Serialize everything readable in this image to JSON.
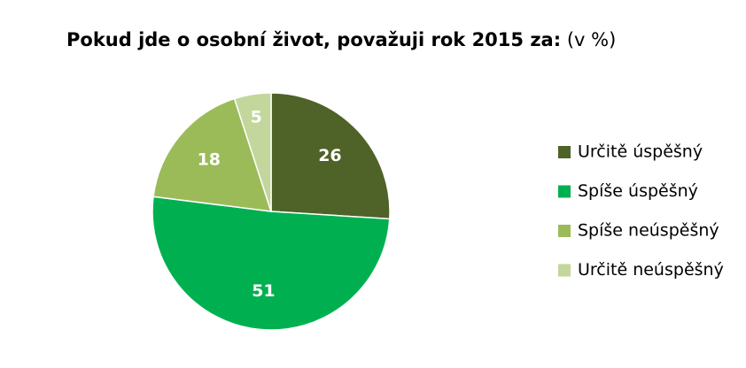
{
  "chart_data": {
    "type": "pie",
    "title": "Pokud jde o osobní život, považuji rok 2015 za:",
    "subtitle": "(v %)",
    "categories": [
      "Určitě úspěšný",
      "Spíše úspěšný",
      "Spíše neúspěšný",
      "Určitě neúspěšný"
    ],
    "values": [
      26,
      51,
      18,
      5
    ],
    "colors": [
      "#4f6228",
      "#00b050",
      "#9bbb59",
      "#c3d69b"
    ],
    "legend": "right"
  }
}
